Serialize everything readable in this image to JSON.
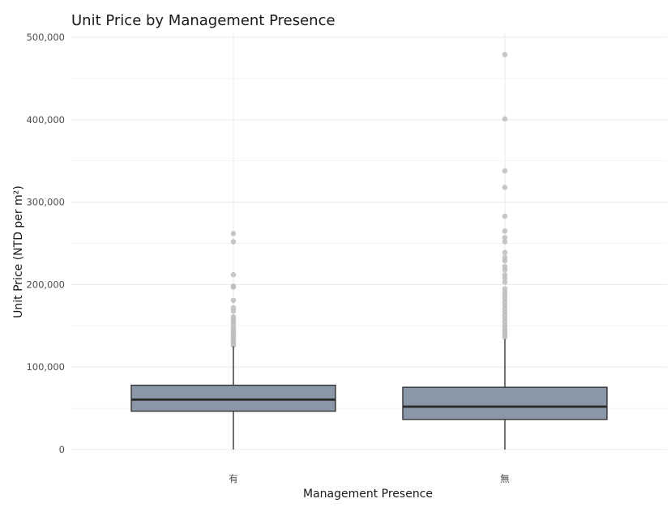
{
  "chart_data": {
    "type": "box",
    "title": "Unit Price by Management Presence",
    "xlabel": "Management Presence",
    "ylabel": "Unit Price (NTD per m²)",
    "ylim": [
      0,
      500000
    ],
    "y_ticks": [
      0,
      100000,
      200000,
      300000,
      400000,
      500000
    ],
    "y_tick_labels": [
      "0",
      "100,000",
      "200,000",
      "300,000",
      "400,000",
      "500,000"
    ],
    "grid": true,
    "colors": {
      "box_fill": "#8a97a8",
      "box_stroke": "#333333",
      "outlier": "#bdbdbd",
      "grid": "#ebebeb"
    },
    "series": [
      {
        "category": "有",
        "whisker_low": 0,
        "q1": 46500,
        "median": 60500,
        "q3": 78000,
        "whisker_high": 125000,
        "outliers": [
          262000,
          252000,
          212000,
          198000,
          197000,
          181000,
          172000,
          168000,
          161000,
          158000,
          155000,
          152000,
          148000,
          145000,
          142000,
          140000,
          138000,
          136000,
          134000,
          132000,
          130000,
          128000,
          126500
        ]
      },
      {
        "category": "無",
        "whisker_low": 0,
        "q1": 36500,
        "median": 52000,
        "q3": 75500,
        "whisker_high": 134000,
        "outliers": [
          479000,
          401000,
          338000,
          318000,
          283000,
          265000,
          257000,
          252000,
          239000,
          233000,
          229000,
          222000,
          218000,
          212000,
          208000,
          203000,
          195000,
          191000,
          187000,
          183000,
          179000,
          175000,
          171000,
          167000,
          163000,
          159000,
          155000,
          151000,
          148000,
          145000,
          142000,
          140000,
          138000,
          136000
        ]
      }
    ]
  }
}
